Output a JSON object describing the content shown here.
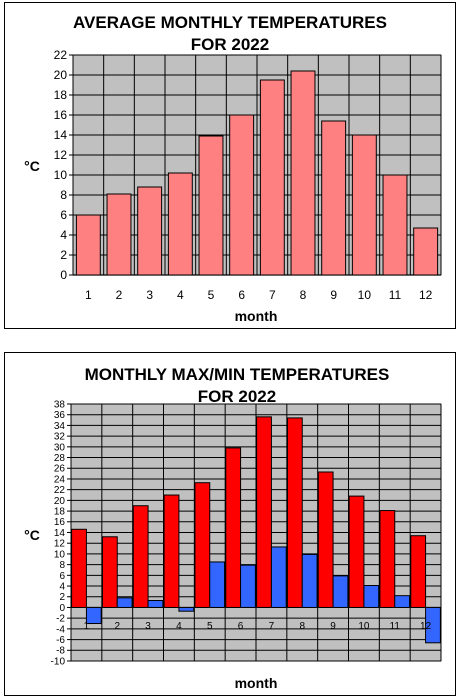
{
  "chart_data": [
    {
      "type": "bar",
      "title_line1": "AVERAGE MONTHLY TEMPERATURES",
      "title_line2": "FOR 2022",
      "xlabel": "month",
      "ylabel": "°C",
      "categories": [
        "1",
        "2",
        "3",
        "4",
        "5",
        "6",
        "7",
        "8",
        "9",
        "10",
        "11",
        "12"
      ],
      "series": [
        {
          "values": [
            6.0,
            8.1,
            8.8,
            10.2,
            13.9,
            16.0,
            19.5,
            20.4,
            15.4,
            14.0,
            10.0,
            4.7
          ],
          "color": "#ff8080"
        }
      ],
      "ylim": [
        0,
        22
      ],
      "yticks": [
        0,
        2,
        4,
        6,
        8,
        10,
        12,
        14,
        16,
        18,
        20,
        22
      ],
      "grid": true,
      "plot_bg": "#c0c0c0"
    },
    {
      "type": "bar",
      "title_line1": "MONTHLY MAX/MIN TEMPERATURES",
      "title_line2": "FOR 2022",
      "xlabel": "month",
      "ylabel": "°C",
      "categories": [
        "1",
        "2",
        "3",
        "4",
        "5",
        "6",
        "7",
        "8",
        "9",
        "10",
        "11",
        "12"
      ],
      "series": [
        {
          "values": [
            14.6,
            13.2,
            19.0,
            21.0,
            23.3,
            29.8,
            35.6,
            35.4,
            25.3,
            20.8,
            18.1,
            13.4
          ],
          "color": "#ff0000"
        },
        {
          "values": [
            -3.0,
            1.8,
            1.3,
            -0.7,
            8.5,
            7.9,
            11.3,
            9.9,
            5.9,
            4.1,
            2.2,
            -6.6
          ],
          "color": "#3366ff"
        }
      ],
      "ylim": [
        -10,
        38
      ],
      "yticks": [
        -10,
        -8,
        -6,
        -4,
        -2,
        0,
        2,
        4,
        6,
        8,
        10,
        12,
        14,
        16,
        18,
        20,
        22,
        24,
        26,
        28,
        30,
        32,
        34,
        36,
        38
      ],
      "grid": true,
      "plot_bg": "#c0c0c0"
    }
  ]
}
